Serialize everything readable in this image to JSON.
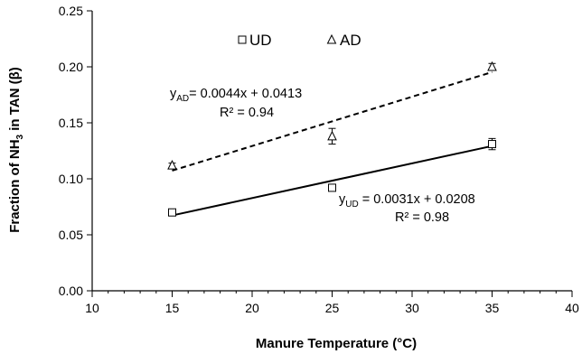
{
  "chart_data": {
    "type": "scatter",
    "xlabel": "Manure Temperature (°C)",
    "ylabel": {
      "prefix": "Fraction of NH",
      "sub": "3",
      "suffix": " in TAN (β)"
    },
    "xlim": [
      10,
      40
    ],
    "ylim": [
      0.0,
      0.25
    ],
    "xticks": [
      "10",
      "15",
      "20",
      "25",
      "30",
      "35",
      "40"
    ],
    "yticks": [
      "0.00",
      "0.05",
      "0.10",
      "0.15",
      "0.20",
      "0.25"
    ],
    "x_minor_step": 1,
    "grid": false,
    "legend_position": "top-center",
    "series": [
      {
        "name": "UD",
        "marker": "square",
        "x": [
          15,
          25,
          35
        ],
        "y": [
          0.07,
          0.092,
          0.131
        ],
        "err": [
          0.002,
          0.002,
          0.005
        ],
        "fit": {
          "slope": 0.0031,
          "intercept": 0.0208,
          "style": "solid",
          "eq_var": "y",
          "eq_sub": "UD",
          "eq_rest": " = 0.0031x + 0.0208",
          "r2": "R² = 0.98"
        }
      },
      {
        "name": "AD",
        "marker": "triangle",
        "x": [
          15,
          25,
          35
        ],
        "y": [
          0.112,
          0.138,
          0.2
        ],
        "err": [
          0.002,
          0.007,
          0.003
        ],
        "fit": {
          "slope": 0.0044,
          "intercept": 0.0413,
          "style": "dashed",
          "eq_var": "y",
          "eq_sub": "AD",
          "eq_rest": "= 0.0044x + 0.0413",
          "r2": "R² = 0.94"
        }
      }
    ]
  }
}
